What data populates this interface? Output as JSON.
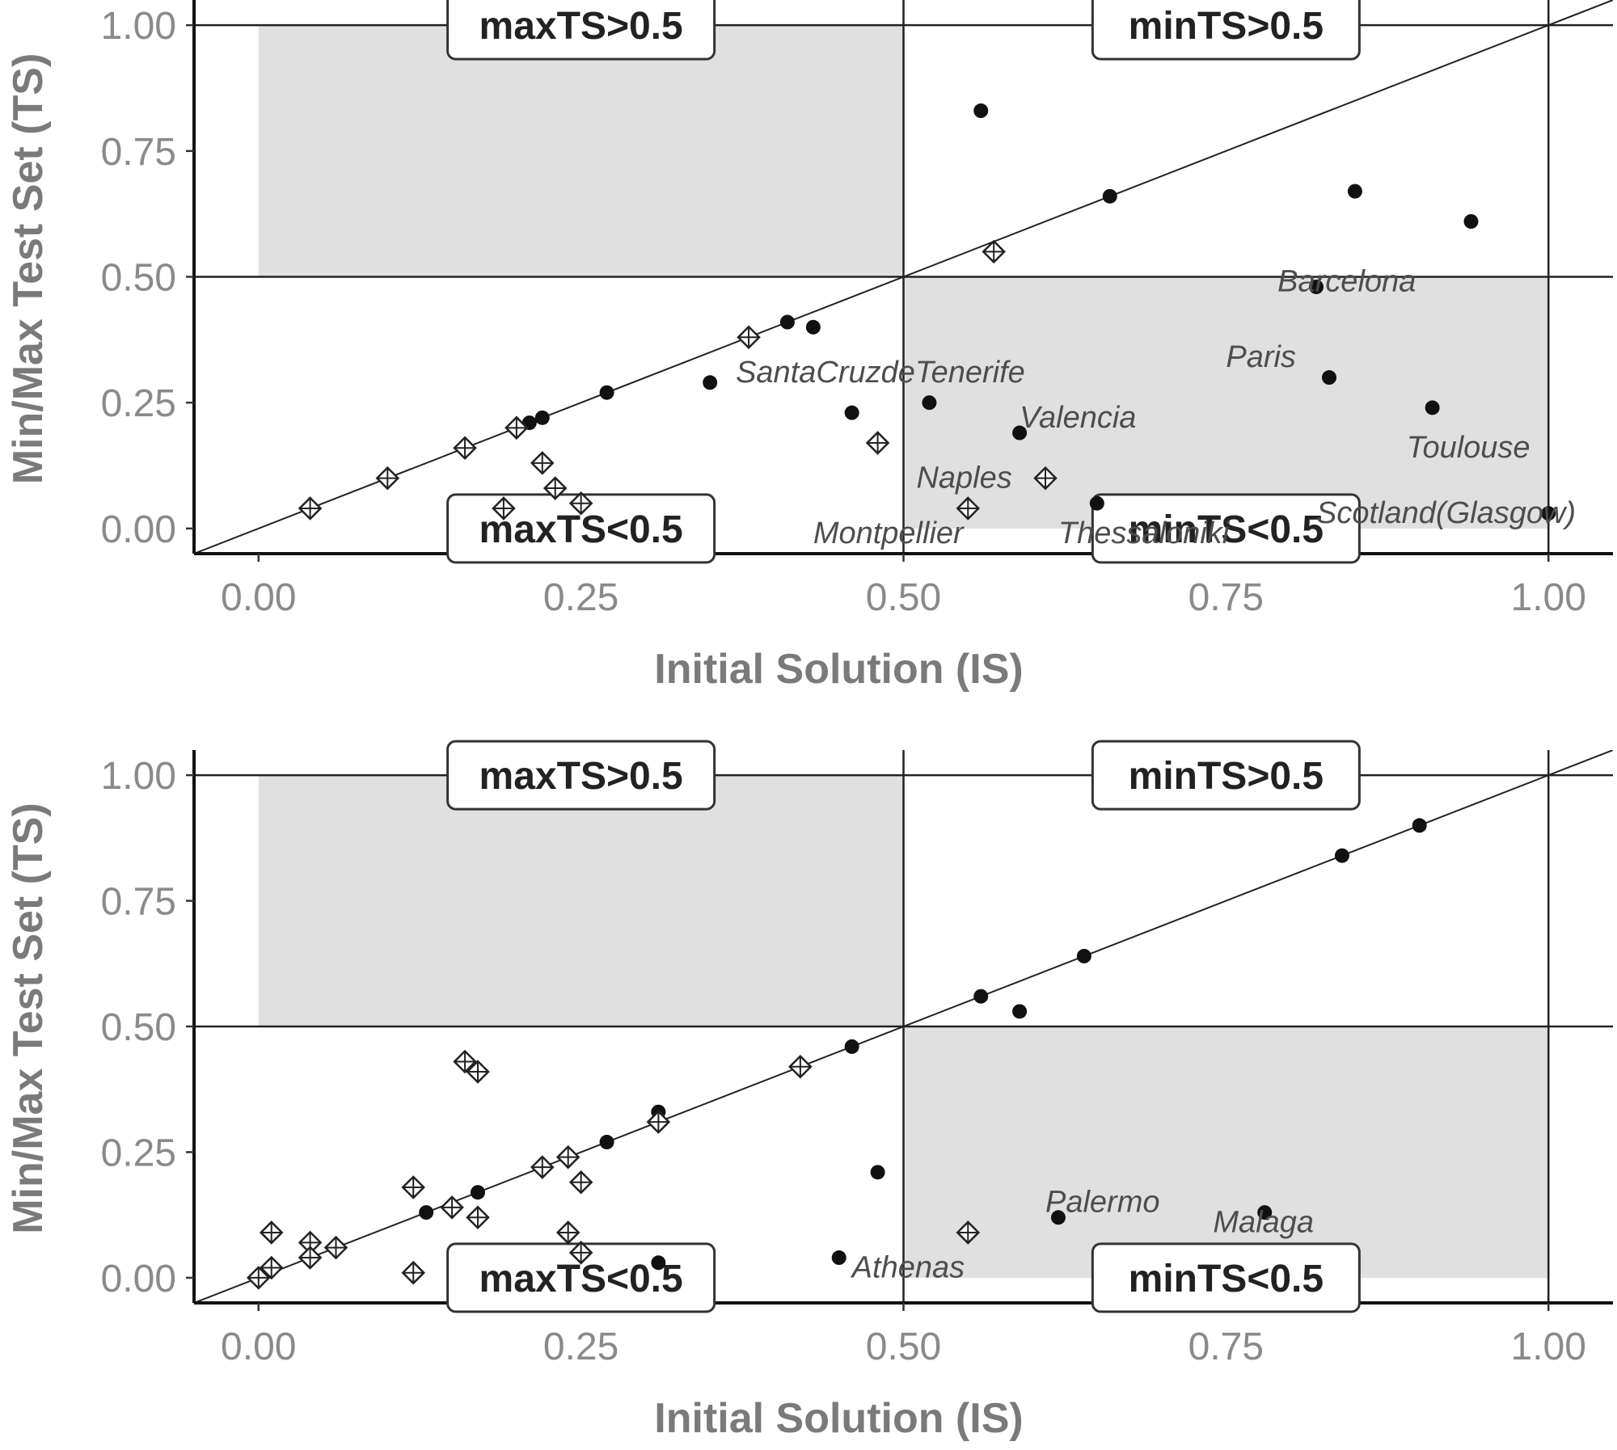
{
  "chart_data": [
    {
      "type": "scatter",
      "xlabel": "Initial Solution (IS)",
      "ylabel": "Min/Max Test Set (TS)",
      "xlim": [
        -0.05,
        1.05
      ],
      "ylim": [
        -0.05,
        1.05
      ],
      "xticks": [
        "0.00",
        "0.25",
        "0.50",
        "0.75",
        "1.00"
      ],
      "yticks": [
        "0.00",
        "0.25",
        "0.50",
        "0.75",
        "1.00"
      ],
      "quadrant_labels": [
        "maxTS>0.5",
        "minTS>0.5",
        "maxTS<0.5",
        "minTS<0.5"
      ],
      "series": [
        {
          "marker": "dot",
          "points": [
            {
              "x": 0.56,
              "y": 0.83
            },
            {
              "x": 0.66,
              "y": 0.66
            },
            {
              "x": 0.85,
              "y": 0.67
            },
            {
              "x": 0.94,
              "y": 0.61
            },
            {
              "x": 0.82,
              "y": 0.48
            },
            {
              "x": 0.83,
              "y": 0.3
            },
            {
              "x": 0.91,
              "y": 0.24
            },
            {
              "x": 1.0,
              "y": 0.03
            },
            {
              "x": 0.41,
              "y": 0.41
            },
            {
              "x": 0.43,
              "y": 0.4
            },
            {
              "x": 0.35,
              "y": 0.29
            },
            {
              "x": 0.27,
              "y": 0.27
            },
            {
              "x": 0.22,
              "y": 0.22
            },
            {
              "x": 0.21,
              "y": 0.21
            },
            {
              "x": 0.46,
              "y": 0.23
            },
            {
              "x": 0.52,
              "y": 0.25
            },
            {
              "x": 0.59,
              "y": 0.19
            },
            {
              "x": 0.65,
              "y": 0.05
            }
          ]
        },
        {
          "marker": "diamond-cross",
          "points": [
            {
              "x": 0.04,
              "y": 0.04
            },
            {
              "x": 0.1,
              "y": 0.1
            },
            {
              "x": 0.16,
              "y": 0.16
            },
            {
              "x": 0.2,
              "y": 0.2
            },
            {
              "x": 0.22,
              "y": 0.13
            },
            {
              "x": 0.23,
              "y": 0.08
            },
            {
              "x": 0.25,
              "y": 0.05
            },
            {
              "x": 0.19,
              "y": 0.04
            },
            {
              "x": 0.38,
              "y": 0.38
            },
            {
              "x": 0.57,
              "y": 0.55
            },
            {
              "x": 0.48,
              "y": 0.17
            },
            {
              "x": 0.61,
              "y": 0.1
            },
            {
              "x": 0.55,
              "y": 0.04
            }
          ]
        }
      ],
      "annotations": [
        {
          "text": "SantaCruzdeTenerife",
          "x": 0.37,
          "y": 0.31
        },
        {
          "text": "Barcelona",
          "x": 0.79,
          "y": 0.49
        },
        {
          "text": "Paris",
          "x": 0.75,
          "y": 0.34
        },
        {
          "text": "Valencia",
          "x": 0.59,
          "y": 0.22
        },
        {
          "text": "Toulouse",
          "x": 0.89,
          "y": 0.16
        },
        {
          "text": "Naples",
          "x": 0.51,
          "y": 0.1
        },
        {
          "text": "Montpellier",
          "x": 0.43,
          "y": -0.01
        },
        {
          "text": "Thessaloniki",
          "x": 0.62,
          "y": -0.01
        },
        {
          "text": "Scotland(Glasgow)",
          "x": 0.82,
          "y": 0.03
        }
      ]
    },
    {
      "type": "scatter",
      "xlabel": "Initial Solution (IS)",
      "ylabel": "Min/Max Test Set (TS)",
      "xlim": [
        -0.05,
        1.05
      ],
      "ylim": [
        -0.05,
        1.05
      ],
      "xticks": [
        "0.00",
        "0.25",
        "0.50",
        "0.75",
        "1.00"
      ],
      "yticks": [
        "0.00",
        "0.25",
        "0.50",
        "0.75",
        "1.00"
      ],
      "quadrant_labels": [
        "maxTS>0.5",
        "minTS>0.5",
        "maxTS<0.5",
        "minTS<0.5"
      ],
      "series": [
        {
          "marker": "dot",
          "points": [
            {
              "x": 0.9,
              "y": 0.9
            },
            {
              "x": 0.84,
              "y": 0.84
            },
            {
              "x": 0.64,
              "y": 0.64
            },
            {
              "x": 0.56,
              "y": 0.56
            },
            {
              "x": 0.59,
              "y": 0.53
            },
            {
              "x": 0.46,
              "y": 0.46
            },
            {
              "x": 0.31,
              "y": 0.33
            },
            {
              "x": 0.27,
              "y": 0.27
            },
            {
              "x": 0.17,
              "y": 0.17
            },
            {
              "x": 0.13,
              "y": 0.13
            },
            {
              "x": 0.48,
              "y": 0.21
            },
            {
              "x": 0.62,
              "y": 0.12
            },
            {
              "x": 0.78,
              "y": 0.13
            },
            {
              "x": 0.45,
              "y": 0.04
            },
            {
              "x": 0.31,
              "y": 0.03
            }
          ]
        },
        {
          "marker": "diamond-cross",
          "points": [
            {
              "x": 0.42,
              "y": 0.42
            },
            {
              "x": 0.31,
              "y": 0.31
            },
            {
              "x": 0.24,
              "y": 0.24
            },
            {
              "x": 0.22,
              "y": 0.22
            },
            {
              "x": 0.25,
              "y": 0.19
            },
            {
              "x": 0.16,
              "y": 0.43
            },
            {
              "x": 0.17,
              "y": 0.41
            },
            {
              "x": 0.12,
              "y": 0.18
            },
            {
              "x": 0.15,
              "y": 0.14
            },
            {
              "x": 0.17,
              "y": 0.12
            },
            {
              "x": 0.24,
              "y": 0.09
            },
            {
              "x": 0.25,
              "y": 0.05
            },
            {
              "x": 0.12,
              "y": 0.01
            },
            {
              "x": 0.04,
              "y": 0.07
            },
            {
              "x": 0.04,
              "y": 0.04
            },
            {
              "x": 0.06,
              "y": 0.06
            },
            {
              "x": 0.01,
              "y": 0.09
            },
            {
              "x": 0.01,
              "y": 0.02
            },
            {
              "x": 0.0,
              "y": 0.0
            },
            {
              "x": 0.55,
              "y": 0.09
            }
          ]
        }
      ],
      "annotations": [
        {
          "text": "Palermo",
          "x": 0.61,
          "y": 0.15
        },
        {
          "text": "Malaga",
          "x": 0.74,
          "y": 0.11
        },
        {
          "text": "Athenas",
          "x": 0.46,
          "y": 0.02
        }
      ]
    }
  ]
}
